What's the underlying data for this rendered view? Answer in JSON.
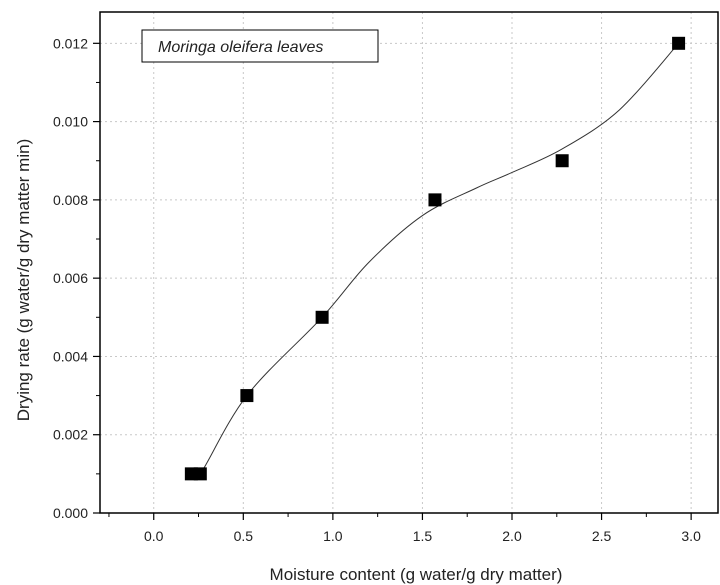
{
  "chart_data": {
    "type": "scatter",
    "title": "",
    "xlabel": "Moisture content  (g water/g dry matter)",
    "ylabel": "Drying rate (g water/g dry matter min)",
    "xlim": [
      -0.3,
      3.15
    ],
    "ylim": [
      0.0,
      0.0128
    ],
    "x_ticks": [
      "0.0",
      "0.5",
      "1.0",
      "1.5",
      "2.0",
      "2.5",
      "3.0"
    ],
    "y_ticks": [
      "0.000",
      "0.002",
      "0.004",
      "0.006",
      "0.008",
      "0.010",
      "0.012"
    ],
    "grid": true,
    "legend_position": "top-left",
    "series": [
      {
        "name": "Moringa oleifera leaves",
        "marker": "square",
        "color": "#000000",
        "x": [
          0.21,
          0.26,
          0.52,
          0.94,
          1.57,
          2.28,
          2.93
        ],
        "y": [
          0.001,
          0.001,
          0.003,
          0.005,
          0.008,
          0.009,
          0.012
        ]
      }
    ],
    "fit_curve": {
      "color": "#333333",
      "x": [
        0.21,
        0.26,
        0.52,
        0.94,
        1.2,
        1.5,
        1.8,
        2.0,
        2.28,
        2.6,
        2.93
      ],
      "y": [
        0.001,
        0.001,
        0.003,
        0.005,
        0.0064,
        0.0076,
        0.0083,
        0.0087,
        0.0093,
        0.0103,
        0.012
      ]
    }
  }
}
